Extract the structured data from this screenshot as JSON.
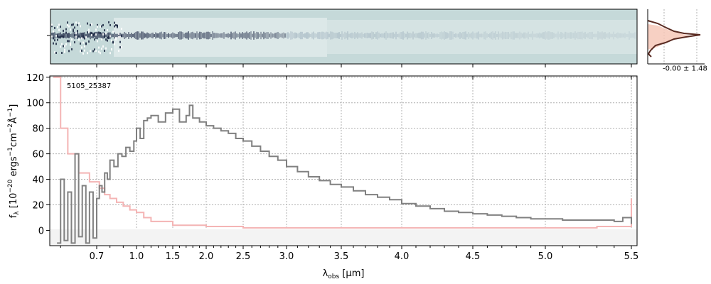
{
  "chart_data": [
    {
      "type": "heatmap",
      "panel": "2d-spectrum",
      "colors": {
        "background": "#c5d9d9",
        "trace": "#2f3a55",
        "mid": "#8fa3b3",
        "light": "#e6eeee"
      }
    },
    {
      "type": "line",
      "panel": "1d-spectrum",
      "annotation": "5105_25387",
      "xlabel": "λ_obs [μm]",
      "ylabel": "f_λ [10^-20 ergs^-1 cm^-2 Å^-1]",
      "xlim": [
        0.57,
        5.52
      ],
      "ylim": [
        -12,
        121
      ],
      "grid": true,
      "x_ticks": [
        0.7,
        1.0,
        1.5,
        2.0,
        2.5,
        3.0,
        3.5,
        4.0,
        4.5,
        5.0,
        5.5
      ],
      "x_tick_labels": [
        "0.7",
        "1.0",
        "1.5",
        "2.0",
        "2.5",
        "3.0",
        "3.5",
        "4.0",
        "4.5",
        "5.0",
        "5.5"
      ],
      "y_ticks": [
        0,
        20,
        40,
        60,
        80,
        100,
        120
      ],
      "y_tick_labels": [
        "0",
        "20",
        "40",
        "60",
        "80",
        "100",
        "120"
      ],
      "series": [
        {
          "role": "flux",
          "color": "#808080",
          "x": [
            0.59,
            0.6,
            0.61,
            0.62,
            0.63,
            0.64,
            0.65,
            0.66,
            0.67,
            0.68,
            0.69,
            0.7,
            0.72,
            0.74,
            0.76,
            0.78,
            0.8,
            0.83,
            0.86,
            0.89,
            0.92,
            0.95,
            0.98,
            1.0,
            1.05,
            1.1,
            1.15,
            1.2,
            1.3,
            1.4,
            1.5,
            1.6,
            1.7,
            1.75,
            1.8,
            1.9,
            2.0,
            2.1,
            2.2,
            2.3,
            2.4,
            2.5,
            2.6,
            2.7,
            2.8,
            2.9,
            3.0,
            3.1,
            3.2,
            3.3,
            3.4,
            3.5,
            3.6,
            3.7,
            3.8,
            3.9,
            4.0,
            4.1,
            4.2,
            4.3,
            4.4,
            4.5,
            4.6,
            4.7,
            4.8,
            4.9,
            5.0,
            5.1,
            5.2,
            5.3,
            5.4,
            5.45,
            5.5
          ],
          "y": [
            -10,
            40,
            -8,
            30,
            -10,
            60,
            -5,
            35,
            -10,
            30,
            -6,
            25,
            35,
            30,
            45,
            40,
            55,
            50,
            60,
            58,
            65,
            62,
            70,
            80,
            72,
            86,
            88,
            90,
            85,
            92,
            95,
            85,
            90,
            98,
            88,
            85,
            82,
            80,
            78,
            76,
            72,
            70,
            66,
            62,
            58,
            55,
            50,
            46,
            42,
            39,
            36,
            34,
            31,
            28,
            26,
            24,
            21,
            19,
            17,
            15,
            14,
            13,
            12,
            11,
            10,
            9,
            9,
            8,
            8,
            8,
            7,
            10,
            5
          ]
        },
        {
          "role": "uncertainty",
          "color": "#f4b4b4",
          "x": [
            0.58,
            0.6,
            0.62,
            0.65,
            0.68,
            0.72,
            0.76,
            0.8,
            0.85,
            0.9,
            0.95,
            1.0,
            1.1,
            1.2,
            1.5,
            2.0,
            2.5,
            3.0,
            3.5,
            4.0,
            4.5,
            5.0,
            5.3,
            5.5
          ],
          "y": [
            120,
            80,
            60,
            45,
            38,
            33,
            28,
            25,
            22,
            19,
            16,
            14,
            10,
            7,
            4,
            3,
            2,
            2,
            2,
            2,
            2,
            2,
            3,
            25
          ]
        }
      ]
    },
    {
      "type": "line",
      "panel": "inset-profile",
      "annotation": "-0.00 ± 1.48",
      "colors": {
        "fill": "#f6c8b8",
        "line": "#5a2b22"
      }
    }
  ]
}
